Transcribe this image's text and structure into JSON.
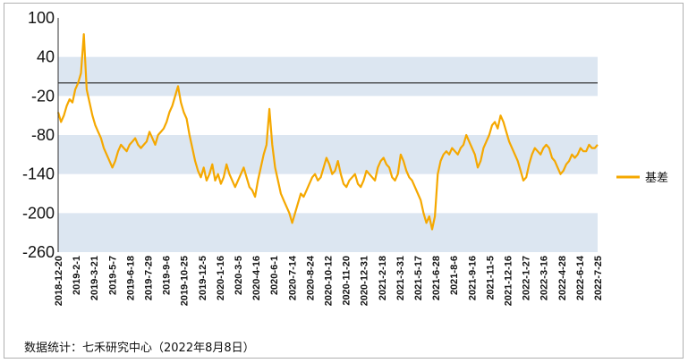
{
  "chart_data": {
    "type": "line",
    "title": "",
    "xlabel": "",
    "ylabel": "",
    "ylim": [
      -260,
      100
    ],
    "yticks": [
      100,
      40,
      -20,
      -80,
      -140,
      -200,
      -260
    ],
    "y_bands": [
      [
        -20,
        40
      ],
      [
        -140,
        -80
      ],
      [
        -260,
        -200
      ]
    ],
    "band_color": "#dce6f1",
    "reference_line": 0,
    "x_tick_labels": [
      "2018-12-20",
      "2019-2-1",
      "2019-3-21",
      "2019-5-7",
      "2019-6-18",
      "2019-7-29",
      "2019-9-6",
      "2019-10-25",
      "2019-12-5",
      "2020-1-16",
      "2020-3-5",
      "2020-4-16",
      "2020-6-1",
      "2020-7-14",
      "2020-8-24",
      "2020-10-12",
      "2020-11-20",
      "2020-12-31",
      "2021-2-18",
      "2021-3-31",
      "2021-5-17",
      "2021-6-28",
      "2021-8-6",
      "2021-9-16",
      "2021-11-5",
      "2021-12-16",
      "2022-1-27",
      "2022-3-16",
      "2022-4-28",
      "2022-6-14",
      "2022-7-25"
    ],
    "legend_position": "right",
    "series": [
      {
        "name": "基差",
        "color": "#f5a800",
        "values": [
          -45,
          -60,
          -50,
          -35,
          -25,
          -30,
          -10,
          0,
          15,
          75,
          -10,
          -30,
          -50,
          -65,
          -75,
          -85,
          -100,
          -110,
          -120,
          -130,
          -120,
          -105,
          -95,
          -100,
          -105,
          -95,
          -90,
          -85,
          -95,
          -100,
          -95,
          -90,
          -75,
          -85,
          -95,
          -80,
          -75,
          -70,
          -60,
          -45,
          -35,
          -20,
          -5,
          -30,
          -45,
          -55,
          -80,
          -100,
          -120,
          -135,
          -145,
          -130,
          -150,
          -140,
          -125,
          -150,
          -140,
          -155,
          -145,
          -125,
          -140,
          -150,
          -160,
          -150,
          -140,
          -130,
          -145,
          -160,
          -165,
          -175,
          -150,
          -130,
          -110,
          -95,
          -40,
          -95,
          -130,
          -150,
          -170,
          -180,
          -190,
          -200,
          -215,
          -200,
          -185,
          -170,
          -175,
          -165,
          -155,
          -145,
          -140,
          -150,
          -145,
          -130,
          -115,
          -125,
          -140,
          -135,
          -120,
          -140,
          -155,
          -160,
          -150,
          -145,
          -140,
          -155,
          -160,
          -150,
          -135,
          -140,
          -145,
          -150,
          -130,
          -120,
          -115,
          -125,
          -130,
          -145,
          -150,
          -140,
          -110,
          -120,
          -135,
          -145,
          -150,
          -160,
          -170,
          -180,
          -200,
          -215,
          -205,
          -225,
          -205,
          -140,
          -120,
          -110,
          -105,
          -110,
          -100,
          -105,
          -110,
          -100,
          -95,
          -80,
          -90,
          -100,
          -110,
          -130,
          -120,
          -100,
          -90,
          -80,
          -65,
          -60,
          -70,
          -50,
          -60,
          -75,
          -90,
          -100,
          -110,
          -120,
          -135,
          -150,
          -145,
          -125,
          -110,
          -100,
          -105,
          -110,
          -100,
          -95,
          -100,
          -115,
          -120,
          -130,
          -140,
          -135,
          -125,
          -120,
          -110,
          -115,
          -110,
          -100,
          -105,
          -105,
          -95,
          -100,
          -100,
          -95
        ]
      }
    ]
  },
  "source_note": "数据统计：七禾研究中心（2022年8月8日）"
}
